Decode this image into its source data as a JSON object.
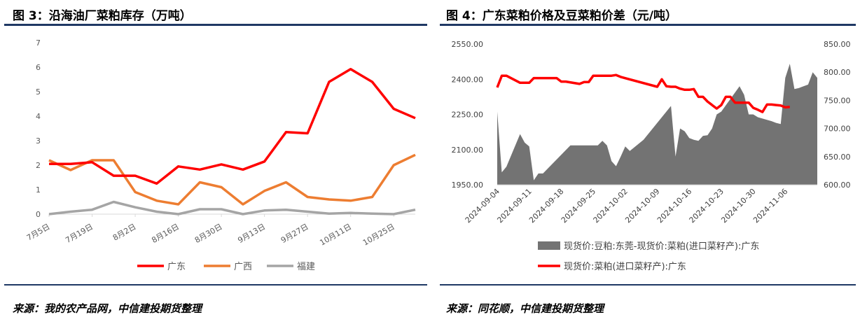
{
  "left": {
    "title": "图 3：沿海油厂菜粕库存（万吨）",
    "source": "来源：我的农产品网，中信建投期货整理"
  },
  "right": {
    "title": "图 4：广东菜粕价格及豆菜粕价差（元/吨）",
    "source": "来源：同花顺，中信建投期货整理"
  },
  "chart_data": [
    {
      "type": "line",
      "title": "",
      "xlabel": "",
      "ylabel": "",
      "ylim": [
        0,
        7
      ],
      "yticks": [
        "0",
        "1",
        "2",
        "3",
        "4",
        "5",
        "6",
        "7"
      ],
      "x_tick_labels": [
        "7月5日",
        "7月19日",
        "8月2日",
        "8月16日",
        "8月30日",
        "9月13日",
        "9月27日",
        "10月11日",
        "10月25日"
      ],
      "legend_position": "bottom",
      "grid": false,
      "colors": {
        "广东": "#ff0000",
        "广西": "#ed7d31",
        "福建": "#a5a5a5"
      },
      "series": [
        {
          "name": "广东",
          "values": [
            2.05,
            2.05,
            2.12,
            1.57,
            1.57,
            1.25,
            1.95,
            1.82,
            2.03,
            1.82,
            2.15,
            3.35,
            3.3,
            5.4,
            5.92,
            5.4,
            4.3,
            3.92
          ]
        },
        {
          "name": "广西",
          "values": [
            2.2,
            1.8,
            2.2,
            2.2,
            0.9,
            0.55,
            0.4,
            1.3,
            1.1,
            0.4,
            0.95,
            1.3,
            0.7,
            0.6,
            0.55,
            0.7,
            2.0,
            2.42
          ]
        },
        {
          "name": "福建",
          "values": [
            0.0,
            0.1,
            0.18,
            0.5,
            0.28,
            0.1,
            0.0,
            0.2,
            0.2,
            0.0,
            0.15,
            0.18,
            0.1,
            0.02,
            0.05,
            0.02,
            0.0,
            0.18
          ]
        }
      ]
    },
    {
      "type": "area",
      "title": "",
      "xlabel": "",
      "ylabel": "",
      "ylim_left": [
        1950,
        2550
      ],
      "ylim_right": [
        600,
        850
      ],
      "yticks_left": [
        "1950.00",
        "2100.00",
        "2250.00",
        "2400.00",
        "2550.00"
      ],
      "yticks_right": [
        "600.00",
        "650.00",
        "700.00",
        "750.00",
        "800.00",
        "850.00"
      ],
      "x_tick_labels": [
        "2024-09-04",
        "2024-09-11",
        "2024-09-18",
        "2024-09-25",
        "2024-10-02",
        "2024-10-09",
        "2024-10-16",
        "2024-10-23",
        "2024-10-30",
        "2024-11-06"
      ],
      "legend_position": "bottom",
      "grid": false,
      "colors": {
        "area": "#737373",
        "line": "#ff0000"
      },
      "series": [
        {
          "name": "现货价:豆粕:东莞-现货价:菜粕(进口菜籽产):广东",
          "axis": "right",
          "points": [
            [
              0,
              730
            ],
            [
              1,
              622
            ],
            [
              2,
              632
            ],
            [
              5,
              690
            ],
            [
              6,
              675
            ],
            [
              7,
              668
            ],
            [
              8,
              608
            ],
            [
              9,
              620
            ],
            [
              10,
              620
            ],
            [
              16,
              670
            ],
            [
              22,
              670
            ],
            [
              23,
              678
            ],
            [
              24,
              670
            ],
            [
              25,
              642
            ],
            [
              26,
              633
            ],
            [
              27,
              650
            ],
            [
              28,
              668
            ],
            [
              29,
              660
            ],
            [
              32,
              680
            ],
            [
              38,
              740
            ],
            [
              39,
              650
            ],
            [
              40,
              700
            ],
            [
              41,
              695
            ],
            [
              42,
              683
            ],
            [
              43,
              680
            ],
            [
              44,
              678
            ],
            [
              45,
              687
            ],
            [
              46,
              688
            ],
            [
              47,
              700
            ],
            [
              48,
              725
            ],
            [
              49,
              730
            ],
            [
              53,
              775
            ],
            [
              54,
              760
            ],
            [
              55,
              725
            ],
            [
              56,
              725
            ],
            [
              57,
              720
            ],
            [
              60,
              713
            ],
            [
              61,
              710
            ],
            [
              62,
              708
            ],
            [
              63,
              790
            ],
            [
              64,
              815
            ],
            [
              65,
              770
            ],
            [
              66,
              772
            ],
            [
              67,
              775
            ],
            [
              68,
              778
            ],
            [
              69,
              800
            ],
            [
              70,
              790
            ]
          ]
        },
        {
          "name": "现货价:菜粕(进口菜籽产):广东",
          "axis": "left",
          "points": [
            [
              0,
              2365
            ],
            [
              1,
              2415
            ],
            [
              2,
              2415
            ],
            [
              5,
              2385
            ],
            [
              6,
              2385
            ],
            [
              7,
              2385
            ],
            [
              8,
              2405
            ],
            [
              13,
              2405
            ],
            [
              14,
              2390
            ],
            [
              15,
              2390
            ],
            [
              18,
              2380
            ],
            [
              19,
              2388
            ],
            [
              20,
              2388
            ],
            [
              21,
              2415
            ],
            [
              25,
              2415
            ],
            [
              26,
              2418
            ],
            [
              27,
              2410
            ],
            [
              35,
              2368
            ],
            [
              36,
              2400
            ],
            [
              37,
              2370
            ],
            [
              38,
              2368
            ],
            [
              39,
              2368
            ],
            [
              40,
              2360
            ],
            [
              41,
              2355
            ],
            [
              42,
              2355
            ],
            [
              43,
              2358
            ],
            [
              44,
              2325
            ],
            [
              45,
              2325
            ],
            [
              46,
              2305
            ],
            [
              47,
              2290
            ],
            [
              48,
              2275
            ],
            [
              49,
              2290
            ],
            [
              50,
              2325
            ],
            [
              51,
              2325
            ],
            [
              52,
              2300
            ],
            [
              53,
              2300
            ],
            [
              54,
              2300
            ],
            [
              55,
              2300
            ],
            [
              56,
              2278
            ],
            [
              57,
              2270
            ],
            [
              58,
              2260
            ],
            [
              59,
              2292
            ],
            [
              60,
              2292
            ],
            [
              61,
              2290
            ],
            [
              62,
              2288
            ],
            [
              63,
              2280
            ],
            [
              64,
              2282
            ]
          ]
        }
      ]
    }
  ]
}
